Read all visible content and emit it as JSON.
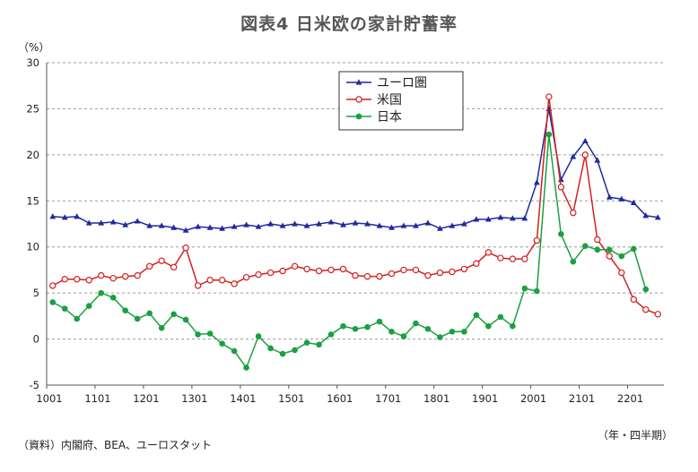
{
  "title": "図表4 日米欧の家計貯蓄率",
  "y_unit_label": "（%）",
  "x_unit_label": "（年・四半期）",
  "source": "（資料）内閣府、BEA、ユーロスタット",
  "colors": {
    "eurozone": "#1f2a9c",
    "us": "#d42020",
    "japan": "#1aa040"
  },
  "chart_data": {
    "type": "line",
    "title": "図表4 日米欧の家計貯蓄率",
    "ylabel": "（%）",
    "xlabel": "（年・四半期）",
    "ylim": [
      -5,
      30
    ],
    "yticks": [
      -5,
      0,
      5,
      10,
      15,
      20,
      25,
      30
    ],
    "xtick_labels": [
      "1001",
      "1101",
      "1201",
      "1301",
      "1401",
      "1501",
      "1601",
      "1701",
      "1801",
      "1901",
      "2001",
      "2101",
      "2201"
    ],
    "grid": "horizontal dashed",
    "legend_position": "top-center",
    "series": [
      {
        "name": "ユーロ圏",
        "key": "eurozone",
        "marker": "triangle",
        "values": [
          13.3,
          13.2,
          13.3,
          12.6,
          12.6,
          12.7,
          12.4,
          12.8,
          12.3,
          12.3,
          12.1,
          11.8,
          12.2,
          12.1,
          12.0,
          12.2,
          12.4,
          12.2,
          12.5,
          12.3,
          12.5,
          12.3,
          12.5,
          12.7,
          12.4,
          12.6,
          12.5,
          12.3,
          12.1,
          12.3,
          12.3,
          12.6,
          12.0,
          12.3,
          12.5,
          13.0,
          13.0,
          13.2,
          13.1,
          13.1,
          17.0,
          25.0,
          17.3,
          19.8,
          21.5,
          19.4,
          15.4,
          15.2,
          14.8,
          13.4,
          13.2
        ]
      },
      {
        "name": "米国",
        "key": "us",
        "marker": "open-circle",
        "values": [
          5.8,
          6.5,
          6.5,
          6.4,
          6.9,
          6.6,
          6.8,
          6.9,
          7.9,
          8.5,
          7.8,
          9.9,
          5.8,
          6.4,
          6.4,
          6.0,
          6.7,
          7.0,
          7.2,
          7.4,
          7.9,
          7.6,
          7.4,
          7.5,
          7.6,
          6.9,
          6.8,
          6.8,
          7.1,
          7.5,
          7.5,
          6.9,
          7.2,
          7.3,
          7.6,
          8.2,
          9.4,
          8.8,
          8.7,
          8.7,
          10.7,
          26.3,
          16.5,
          13.7,
          20.0,
          10.8,
          9.0,
          7.2,
          4.3,
          3.2,
          2.7
        ]
      },
      {
        "name": "日本",
        "key": "japan",
        "marker": "filled-circle",
        "values": [
          4.0,
          3.3,
          2.2,
          3.6,
          5.0,
          4.5,
          3.1,
          2.2,
          2.8,
          1.2,
          2.7,
          2.1,
          0.5,
          0.6,
          -0.5,
          -1.3,
          -3.1,
          0.3,
          -1.0,
          -1.6,
          -1.2,
          -0.4,
          -0.6,
          0.5,
          1.4,
          1.1,
          1.3,
          1.9,
          0.8,
          0.3,
          1.7,
          1.1,
          0.2,
          0.8,
          0.8,
          2.6,
          1.4,
          2.4,
          1.4,
          5.5,
          5.2,
          22.2,
          11.4,
          8.4,
          10.1,
          9.7,
          9.7,
          9.0,
          9.8,
          5.4
        ]
      }
    ]
  }
}
